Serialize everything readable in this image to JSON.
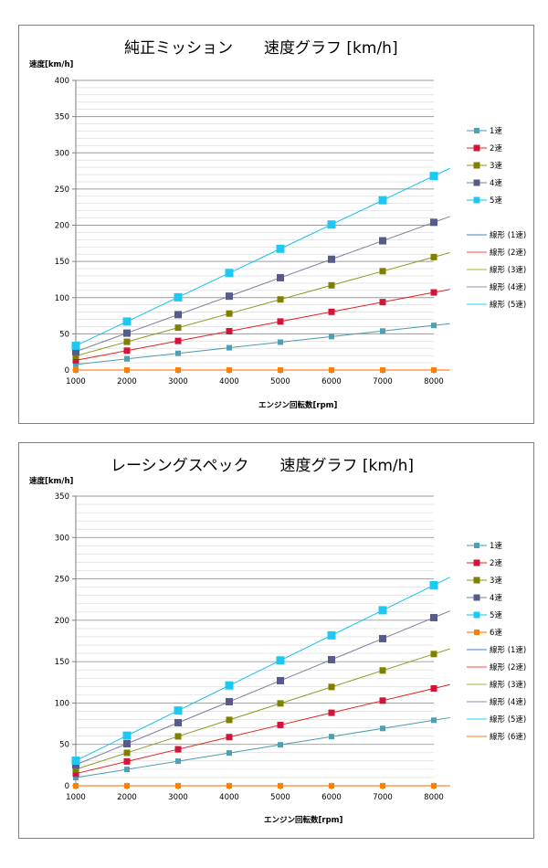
{
  "chart_data": [
    {
      "type": "line",
      "title": "純正ミッション　　速度グラフ [km/h]",
      "ylabel": "速度[km/h]",
      "xlabel": "エンジン回転数[rpm]",
      "x": [
        1000,
        2000,
        3000,
        4000,
        5000,
        6000,
        7000,
        8000
      ],
      "ylim": [
        0,
        400
      ],
      "yticks": [
        0,
        50,
        100,
        150,
        200,
        250,
        300,
        350,
        400
      ],
      "minor_grid_step": 10,
      "series": [
        {
          "name": "1速",
          "color": "#4a9ab0",
          "marker": "#4f9fb5",
          "values": [
            7.7,
            15.4,
            23.1,
            30.8,
            38.5,
            46.2,
            53.9,
            61.6
          ]
        },
        {
          "name": "2速",
          "color": "#e02020",
          "marker": "#d2143a",
          "values": [
            13.4,
            26.8,
            40.2,
            53.6,
            67.0,
            80.4,
            93.8,
            107.2
          ]
        },
        {
          "name": "3速",
          "color": "#8a9a20",
          "marker": "#7f7f00",
          "values": [
            19.5,
            39.0,
            58.5,
            78.0,
            97.5,
            117.0,
            136.5,
            156.0
          ]
        },
        {
          "name": "4速",
          "color": "#7a7aa0",
          "marker": "#5a5a8a",
          "values": [
            25.5,
            51.0,
            76.5,
            102.0,
            127.5,
            153.0,
            178.5,
            204.0
          ]
        },
        {
          "name": "5速",
          "color": "#10c0f0",
          "marker": "#1ec8f0",
          "values": [
            33.5,
            67.0,
            100.5,
            134.0,
            167.5,
            201.0,
            234.5,
            268.0
          ]
        },
        {
          "name": "",
          "color": "#ff6600",
          "marker": "#ff7f00",
          "values": [
            0,
            0,
            0,
            0,
            0,
            0,
            0,
            0
          ]
        }
      ],
      "trendlines": [
        {
          "name": "線形 (1速)",
          "color": "#4a7fd0"
        },
        {
          "name": "線形 (2速)",
          "color": "#ff4a4a"
        },
        {
          "name": "線形 (3速)",
          "color": "#a0b040"
        },
        {
          "name": "線形 (4速)",
          "color": "#9090b8"
        },
        {
          "name": "線形 (5速)",
          "color": "#20d0f5"
        }
      ]
    },
    {
      "type": "line",
      "title": "レーシングスペック　　速度グラフ [km/h]",
      "ylabel": "速度[km/h]",
      "xlabel": "エンジン回転数[rpm]",
      "x": [
        1000,
        2000,
        3000,
        4000,
        5000,
        6000,
        7000,
        8000
      ],
      "ylim": [
        0,
        350
      ],
      "yticks": [
        0,
        50,
        100,
        150,
        200,
        250,
        300,
        350
      ],
      "minor_grid_step": 10,
      "series": [
        {
          "name": "1速",
          "color": "#4a9ab0",
          "marker": "#4f9fb5",
          "values": [
            9.9,
            19.8,
            29.7,
            39.6,
            49.5,
            59.4,
            69.3,
            79.2
          ]
        },
        {
          "name": "2速",
          "color": "#e02020",
          "marker": "#d2143a",
          "values": [
            14.7,
            29.4,
            44.1,
            58.8,
            73.5,
            88.2,
            102.9,
            117.6
          ]
        },
        {
          "name": "3速",
          "color": "#8a9a20",
          "marker": "#7f7f00",
          "values": [
            19.9,
            39.8,
            59.7,
            79.6,
            99.5,
            119.4,
            139.3,
            159.2
          ]
        },
        {
          "name": "4速",
          "color": "#7a7aa0",
          "marker": "#5a5a8a",
          "values": [
            25.4,
            50.8,
            76.2,
            101.6,
            127.0,
            152.4,
            177.8,
            203.2
          ]
        },
        {
          "name": "5速",
          "color": "#10c0f0",
          "marker": "#1ec8f0",
          "values": [
            30.3,
            60.6,
            90.9,
            121.2,
            151.5,
            181.8,
            212.1,
            242.4
          ]
        },
        {
          "name": "6速",
          "color": "#ff6600",
          "marker": "#ff7f00",
          "values": [
            0,
            0,
            0,
            0,
            0,
            0,
            0,
            0
          ]
        }
      ],
      "trendlines": [
        {
          "name": "線形 (1速)",
          "color": "#4a7fd0"
        },
        {
          "name": "線形 (2速)",
          "color": "#ff4a4a"
        },
        {
          "name": "線形 (3速)",
          "color": "#a0b040"
        },
        {
          "name": "線形 (4速)",
          "color": "#9090b8"
        },
        {
          "name": "線形 (5速)",
          "color": "#20d0f5"
        },
        {
          "name": "線形 (6速)",
          "color": "#ff7a2a"
        }
      ]
    }
  ]
}
